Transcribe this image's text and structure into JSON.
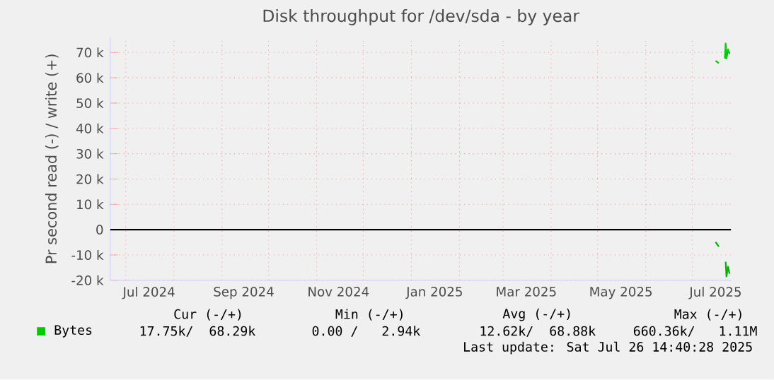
{
  "chart_data": {
    "type": "line",
    "title": "Disk throughput for /dev/sda - by year",
    "ylabel": "Pr second read (-) / write (+)",
    "xlim": [
      "2024-06-21",
      "2025-07-26"
    ],
    "xticks": [
      {
        "value": "2024-07-16",
        "label": "Jul 2024"
      },
      {
        "value": "2024-09-15",
        "label": "Sep 2024"
      },
      {
        "value": "2024-11-15",
        "label": "Nov 2024"
      },
      {
        "value": "2025-01-16",
        "label": "Jan 2025"
      },
      {
        "value": "2025-03-16",
        "label": "Mar 2025"
      },
      {
        "value": "2025-05-16",
        "label": "May 2025"
      },
      {
        "value": "2025-07-16",
        "label": "Jul 2025"
      },
      {
        "value": "2024-07-01",
        "label": null
      },
      {
        "value": "2024-08-01",
        "label": null
      },
      {
        "value": "2024-09-01",
        "label": null
      },
      {
        "value": "2024-10-01",
        "label": null
      },
      {
        "value": "2024-11-01",
        "label": null
      },
      {
        "value": "2024-12-01",
        "label": null
      },
      {
        "value": "2025-01-01",
        "label": null
      },
      {
        "value": "2025-02-01",
        "label": null
      },
      {
        "value": "2025-03-01",
        "label": null
      },
      {
        "value": "2025-04-01",
        "label": null
      },
      {
        "value": "2025-05-01",
        "label": null
      },
      {
        "value": "2025-06-01",
        "label": null
      },
      {
        "value": "2025-07-01",
        "label": null
      }
    ],
    "ylim": [
      -20000,
      76000
    ],
    "yticks": [
      {
        "value": -20000,
        "label": "-20 k"
      },
      {
        "value": -10000,
        "label": "-10 k"
      },
      {
        "value": 0,
        "label": "0"
      },
      {
        "value": 10000,
        "label": "10 k"
      },
      {
        "value": 20000,
        "label": "20 k"
      },
      {
        "value": 30000,
        "label": "30 k"
      },
      {
        "value": 40000,
        "label": "40 k"
      },
      {
        "value": 50000,
        "label": "50 k"
      },
      {
        "value": 60000,
        "label": "60 k"
      },
      {
        "value": 70000,
        "label": "70 k"
      }
    ],
    "grid": true,
    "legend": "bottom",
    "ref_lines": [
      {
        "axis": "y",
        "value": 0,
        "color": "#000000"
      }
    ],
    "series": [
      {
        "name": "Bytes",
        "color": "#00cc00",
        "x": [
          "2025-07-16",
          "2025-07-18",
          "2025-07-20",
          "2025-07-22",
          "2025-07-22T12:00",
          "2025-07-23",
          "2025-07-24",
          "2025-07-25"
        ],
        "values": [
          66700,
          65800,
          null,
          67600,
          73500,
          67600,
          71200,
          69400
        ]
      },
      {
        "color": "#00b400",
        "x": [
          "2025-07-16",
          "2025-07-18",
          "2025-07-20",
          "2025-07-22",
          "2025-07-22T12:00",
          "2025-07-23",
          "2025-07-24",
          "2025-07-25"
        ],
        "values": [
          -4900,
          -6700,
          null,
          -13000,
          -13000,
          -18500,
          -14700,
          -17400
        ]
      }
    ],
    "annotations": [
      "Cur (-/+)",
      "Min (-/+)",
      "Avg (-/+)",
      "Max (-/+)",
      "17.75k/  68.29k",
      "0.00 /   2.94k",
      "12.62k/  68.88k",
      "660.36k/   1.11M",
      "Last update: Sat Jul 26 14:40:28 2025"
    ]
  }
}
